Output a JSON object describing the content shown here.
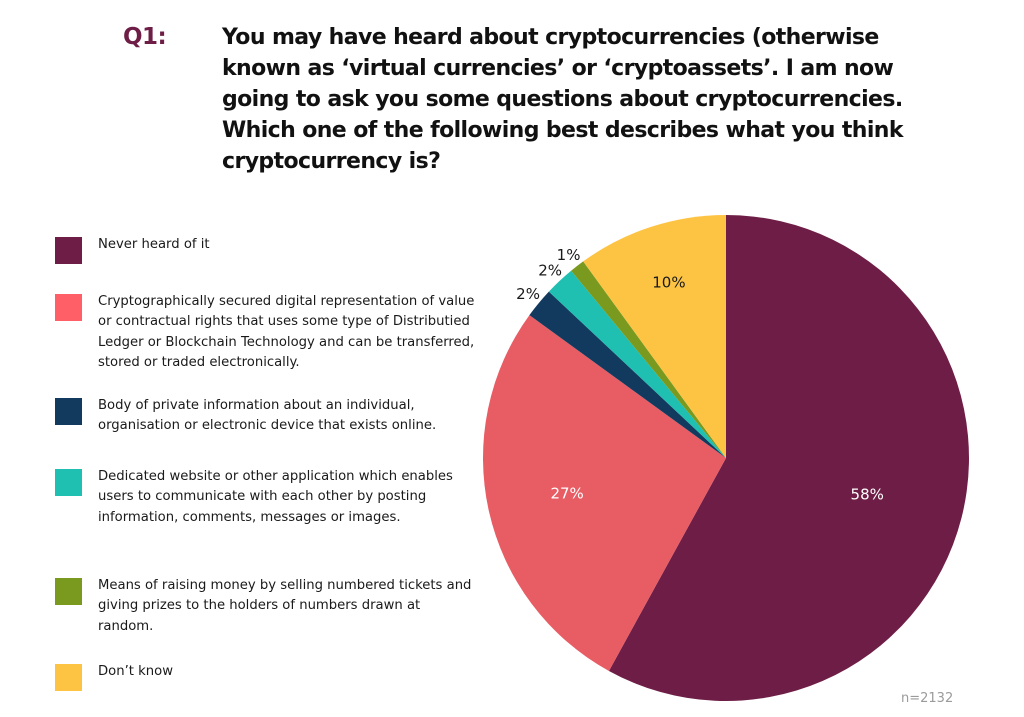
{
  "question": {
    "label": "Q1:",
    "text": "You may have heard about cryptocurrencies (otherwise known as ‘virtual currencies’ or ‘cryptoassets’. I am now going to ask you some questions about cryptocurrencies. Which one of the following best describes what you think cryptocurrency is?"
  },
  "legend": [
    {
      "label": "Never heard of it",
      "color": "#6e1e46"
    },
    {
      "label": "Cryptographically secured digital representation of value or contractual rights that uses some type of Distributied Ledger or Blockchain Technology and can be transferred, stored or traded electronically.",
      "color": "#ff5f67"
    },
    {
      "label": "Body of private information about an individual, organisation or electronic device that exists online.",
      "color": "#12395e"
    },
    {
      "label": "Dedicated website or other application which enables users to communicate with each other by posting information, comments, messages or images.",
      "color": "#1fbfb1"
    },
    {
      "label": "Means of raising money by selling numbered tickets and giving prizes to the holders of numbers drawn at random.",
      "color": "#7a9a1f"
    },
    {
      "label": "Don’t know",
      "color": "#fdc444"
    }
  ],
  "sample_size": "n=2132",
  "chart_data": {
    "type": "pie",
    "title": "Which one of the following best describes what you think cryptocurrency is?",
    "categories": [
      "Never heard of it",
      "Cryptographically secured digital representation of value or contractual rights that uses some type of Distributied Ledger or Blockchain Technology and can be transferred, stored or traded electronically.",
      "Body of private information about an individual, organisation or electronic device that exists online.",
      "Dedicated website or other application which enables users to communicate with each other by posting information, comments, messages or images.",
      "Means of raising money by selling numbered tickets and giving prizes to the holders of numbers drawn at random.",
      "Don’t know"
    ],
    "values": [
      58,
      27,
      2,
      2,
      1,
      10
    ],
    "data_labels": [
      "58%",
      "27%",
      "2%",
      "2%",
      "1%",
      "10%"
    ],
    "colors": [
      "#6e1e46",
      "#e85c64",
      "#12395e",
      "#1fbfb1",
      "#7a9a1f",
      "#fdc444"
    ],
    "label_colors": [
      "#ffffff",
      "#ffffff",
      "#1a1a1a",
      "#1a1a1a",
      "#1a1a1a",
      "#1a1a1a"
    ],
    "start_angle": "12 o'clock, clockwise",
    "legend_position": "left",
    "annotation": "n=2132"
  }
}
